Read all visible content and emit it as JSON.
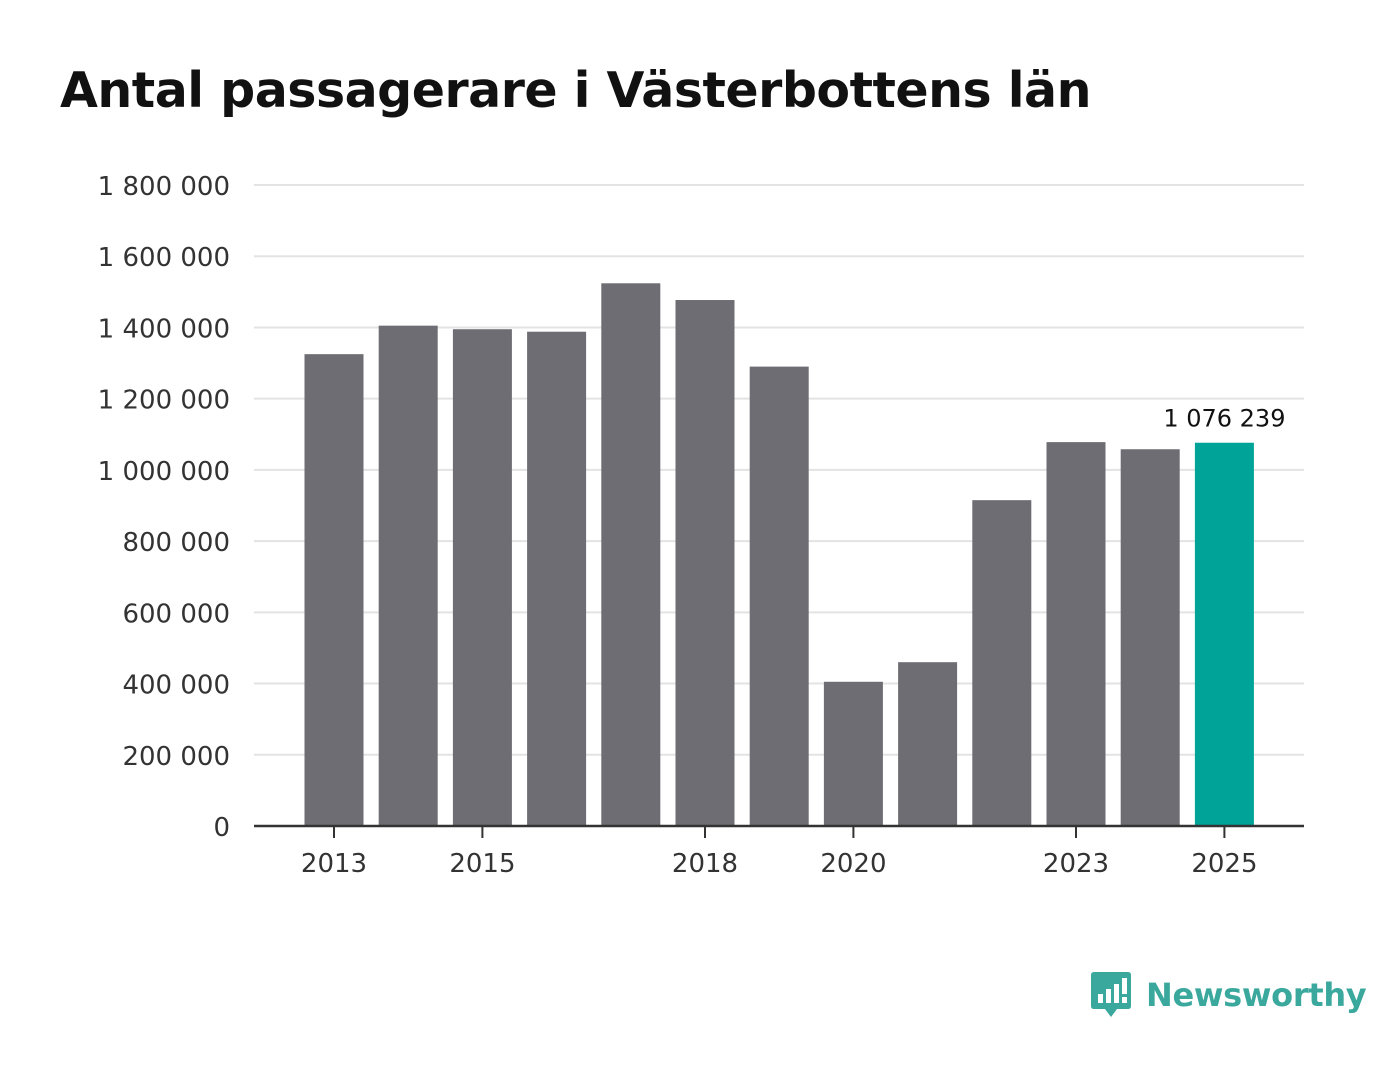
{
  "colors": {
    "bar": "#6d6d73",
    "highlight": "#00a398",
    "grid": "#e3e3e3",
    "axis": "#333333",
    "text": "#333333",
    "brand": "#3aa89d"
  },
  "brand": {
    "name": "Newsworthy",
    "icon": "bar-chart-speech-bubble-icon"
  },
  "chart_data": {
    "type": "bar",
    "title": "Antal passagerare i Västerbottens län",
    "xlabel": "",
    "ylabel": "",
    "ylim": [
      0,
      1800000
    ],
    "yticks": [
      0,
      200000,
      400000,
      600000,
      800000,
      1000000,
      1200000,
      1400000,
      1600000,
      1800000
    ],
    "ytick_labels": [
      "0",
      "200 000",
      "400 000",
      "600 000",
      "800 000",
      "1 000 000",
      "1 200 000",
      "1 400 000",
      "1 600 000",
      "1 800 000"
    ],
    "categories": [
      "2013",
      "2014",
      "2015",
      "2016",
      "2017",
      "2018",
      "2019",
      "2020",
      "2021",
      "2022",
      "2023",
      "2024",
      "2025"
    ],
    "xtick_labels": [
      "2013",
      "2015",
      "2018",
      "2020",
      "2023",
      "2025"
    ],
    "values": [
      1325000,
      1405000,
      1395000,
      1388000,
      1524000,
      1477000,
      1290000,
      405000,
      460000,
      915000,
      1078000,
      1058000,
      1076239
    ],
    "highlight_index": 12,
    "annotations": [
      {
        "category": "2025",
        "text": "1 076 239"
      }
    ],
    "grid": true
  }
}
